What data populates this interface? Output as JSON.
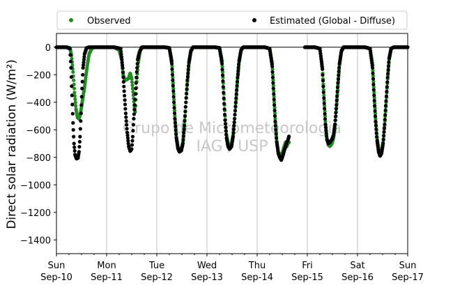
{
  "chart_data": {
    "type": "scatter",
    "ylabel": "Direct solar radiation (W/m²)",
    "ylim": [
      -1500,
      100
    ],
    "yticks": [
      0,
      -200,
      -400,
      -600,
      -800,
      -1000,
      -1200,
      -1400
    ],
    "xlim": [
      0,
      7
    ],
    "x_unit": "days since Sun Sep-10 00:00",
    "xticks": [
      {
        "day": "Sun",
        "date": "Sep-10"
      },
      {
        "day": "Mon",
        "date": "Sep-11"
      },
      {
        "day": "Tue",
        "date": "Sep-12"
      },
      {
        "day": "Wed",
        "date": "Sep-13"
      },
      {
        "day": "Thu",
        "date": "Sep-14"
      },
      {
        "day": "Fri",
        "date": "Sep-15"
      },
      {
        "day": "Sat",
        "date": "Sep-16"
      },
      {
        "day": "Sun",
        "date": "Sep-17"
      }
    ],
    "grid": "vertical",
    "zero_line": true,
    "legend": {
      "placement": "top-outside",
      "entries": [
        {
          "name": "Observed",
          "color": "#228B22"
        },
        {
          "name": "Estimated (Global - Diffuse)",
          "color": "#000000"
        }
      ]
    },
    "watermark": [
      "Grupo de Micrometeorologia",
      "IAG / USP"
    ],
    "series": [
      {
        "name": "Observed",
        "color": "#228B22",
        "points": [
          [
            0.0,
            0
          ],
          [
            0.1,
            0
          ],
          [
            0.2,
            0
          ],
          [
            0.27,
            -5
          ],
          [
            0.3,
            -60
          ],
          [
            0.33,
            -180
          ],
          [
            0.36,
            -330
          ],
          [
            0.39,
            -450
          ],
          [
            0.42,
            -510
          ],
          [
            0.45,
            -520
          ],
          [
            0.48,
            -480
          ],
          [
            0.5,
            -430
          ],
          [
            0.53,
            -360
          ],
          [
            0.56,
            -290
          ],
          [
            0.59,
            -200
          ],
          [
            0.62,
            -120
          ],
          [
            0.65,
            -50
          ],
          [
            0.7,
            -10
          ],
          [
            0.75,
            0
          ],
          [
            0.85,
            0
          ],
          [
            1.0,
            0
          ],
          [
            1.15,
            0
          ],
          [
            1.25,
            -20
          ],
          [
            1.3,
            -90
          ],
          [
            1.33,
            -200
          ],
          [
            1.36,
            -240
          ],
          [
            1.4,
            -235
          ],
          [
            1.44,
            -225
          ],
          [
            1.47,
            -190
          ],
          [
            1.5,
            -230
          ],
          [
            1.52,
            -300
          ],
          [
            1.55,
            -420
          ],
          [
            1.57,
            -470
          ],
          [
            1.6,
            -250
          ],
          [
            1.63,
            -110
          ],
          [
            1.67,
            -20
          ],
          [
            1.72,
            0
          ],
          [
            1.85,
            0
          ],
          [
            2.0,
            0
          ],
          [
            2.15,
            0
          ],
          [
            2.25,
            -5
          ],
          [
            2.3,
            -100
          ],
          [
            2.33,
            -300
          ],
          [
            2.36,
            -500
          ],
          [
            2.39,
            -650
          ],
          [
            2.42,
            -720
          ],
          [
            2.45,
            -750
          ],
          [
            2.49,
            -745
          ],
          [
            2.52,
            -690
          ],
          [
            2.55,
            -560
          ],
          [
            2.58,
            -400
          ],
          [
            2.61,
            -250
          ],
          [
            2.64,
            -120
          ],
          [
            2.68,
            -30
          ],
          [
            2.72,
            0
          ],
          [
            2.85,
            0
          ],
          [
            3.0,
            0
          ],
          [
            3.15,
            0
          ],
          [
            3.25,
            -5
          ],
          [
            3.3,
            -100
          ],
          [
            3.33,
            -300
          ],
          [
            3.36,
            -500
          ],
          [
            3.39,
            -640
          ],
          [
            3.42,
            -700
          ],
          [
            3.45,
            -715
          ],
          [
            3.49,
            -700
          ],
          [
            3.52,
            -640
          ],
          [
            3.55,
            -520
          ],
          [
            3.58,
            -380
          ],
          [
            3.61,
            -230
          ],
          [
            3.64,
            -110
          ],
          [
            3.68,
            -20
          ],
          [
            3.72,
            0
          ],
          [
            3.85,
            0
          ],
          [
            4.0,
            0
          ],
          [
            4.15,
            0
          ],
          [
            4.25,
            -10
          ],
          [
            4.3,
            -120
          ],
          [
            4.33,
            -320
          ],
          [
            4.36,
            -520
          ],
          [
            4.39,
            -680
          ],
          [
            4.42,
            -760
          ],
          [
            4.45,
            -790
          ],
          [
            4.48,
            -780
          ],
          [
            4.51,
            -760
          ],
          [
            4.54,
            -720
          ],
          [
            4.57,
            -690
          ],
          [
            4.59,
            -720
          ],
          [
            4.61,
            -700
          ],
          [
            4.64,
            -690
          ],
          [
            4.75,
            null
          ],
          [
            4.95,
            0
          ],
          [
            5.0,
            0
          ],
          [
            5.15,
            0
          ],
          [
            5.25,
            -10
          ],
          [
            5.3,
            -150
          ],
          [
            5.33,
            -350
          ],
          [
            5.36,
            -540
          ],
          [
            5.39,
            -660
          ],
          [
            5.42,
            -710
          ],
          [
            5.45,
            -720
          ],
          [
            5.49,
            -700
          ],
          [
            5.52,
            -660
          ],
          [
            5.55,
            -590
          ],
          [
            5.58,
            -440
          ],
          [
            5.61,
            -280
          ],
          [
            5.64,
            -130
          ],
          [
            5.68,
            -30
          ],
          [
            5.72,
            0
          ],
          [
            5.85,
            0
          ],
          [
            6.0,
            0
          ],
          [
            6.15,
            0
          ],
          [
            6.25,
            -10
          ],
          [
            6.3,
            -130
          ],
          [
            6.33,
            -330
          ],
          [
            6.36,
            -520
          ],
          [
            6.39,
            -660
          ],
          [
            6.42,
            -740
          ],
          [
            6.45,
            -770
          ],
          [
            6.48,
            -750
          ],
          [
            6.51,
            -690
          ],
          [
            6.54,
            -570
          ],
          [
            6.57,
            -400
          ],
          [
            6.6,
            -230
          ],
          [
            6.63,
            -90
          ],
          [
            6.67,
            -10
          ],
          [
            6.72,
            0
          ],
          [
            6.85,
            0
          ],
          [
            7.0,
            0
          ]
        ]
      },
      {
        "name": "Estimated (Global - Diffuse)",
        "color": "#000000",
        "points": [
          [
            0.0,
            0
          ],
          [
            0.1,
            0
          ],
          [
            0.2,
            0
          ],
          [
            0.27,
            -10
          ],
          [
            0.29,
            -150
          ],
          [
            0.31,
            -350
          ],
          [
            0.33,
            -550
          ],
          [
            0.35,
            -700
          ],
          [
            0.37,
            -780
          ],
          [
            0.4,
            -810
          ],
          [
            0.43,
            -805
          ],
          [
            0.45,
            -760
          ],
          [
            0.47,
            -650
          ],
          [
            0.49,
            -480
          ],
          [
            0.51,
            -300
          ],
          [
            0.53,
            -150
          ],
          [
            0.56,
            -50
          ],
          [
            0.6,
            -5
          ],
          [
            0.65,
            0
          ],
          [
            0.85,
            0
          ],
          [
            1.0,
            0
          ],
          [
            1.15,
            0
          ],
          [
            1.28,
            -10
          ],
          [
            1.32,
            -150
          ],
          [
            1.35,
            -320
          ],
          [
            1.38,
            -480
          ],
          [
            1.41,
            -620
          ],
          [
            1.44,
            -720
          ],
          [
            1.47,
            -755
          ],
          [
            1.5,
            -740
          ],
          [
            1.52,
            -650
          ],
          [
            1.54,
            -520
          ],
          [
            1.56,
            -420
          ],
          [
            1.58,
            -300
          ],
          [
            1.6,
            -180
          ],
          [
            1.62,
            -90
          ],
          [
            1.65,
            -40
          ],
          [
            1.7,
            0
          ],
          [
            1.85,
            0
          ],
          [
            2.0,
            0
          ],
          [
            2.15,
            0
          ],
          [
            2.25,
            -5
          ],
          [
            2.3,
            -120
          ],
          [
            2.33,
            -320
          ],
          [
            2.36,
            -520
          ],
          [
            2.39,
            -660
          ],
          [
            2.42,
            -735
          ],
          [
            2.45,
            -760
          ],
          [
            2.49,
            -750
          ],
          [
            2.52,
            -700
          ],
          [
            2.55,
            -570
          ],
          [
            2.58,
            -400
          ],
          [
            2.61,
            -240
          ],
          [
            2.64,
            -110
          ],
          [
            2.68,
            -25
          ],
          [
            2.72,
            0
          ],
          [
            2.85,
            0
          ],
          [
            3.0,
            0
          ],
          [
            3.15,
            0
          ],
          [
            3.25,
            -5
          ],
          [
            3.3,
            -120
          ],
          [
            3.33,
            -330
          ],
          [
            3.36,
            -530
          ],
          [
            3.39,
            -660
          ],
          [
            3.42,
            -720
          ],
          [
            3.45,
            -740
          ],
          [
            3.49,
            -720
          ],
          [
            3.52,
            -650
          ],
          [
            3.55,
            -520
          ],
          [
            3.58,
            -370
          ],
          [
            3.61,
            -220
          ],
          [
            3.64,
            -100
          ],
          [
            3.68,
            -20
          ],
          [
            3.72,
            0
          ],
          [
            3.85,
            0
          ],
          [
            4.0,
            0
          ],
          [
            4.15,
            0
          ],
          [
            4.25,
            -10
          ],
          [
            4.3,
            -140
          ],
          [
            4.33,
            -340
          ],
          [
            4.36,
            -540
          ],
          [
            4.39,
            -690
          ],
          [
            4.42,
            -770
          ],
          [
            4.45,
            -800
          ],
          [
            4.48,
            -820
          ],
          [
            4.51,
            -790
          ],
          [
            4.54,
            -750
          ],
          [
            4.57,
            -720
          ],
          [
            4.59,
            -690
          ],
          [
            4.61,
            -680
          ],
          [
            4.64,
            -640
          ],
          [
            4.75,
            null
          ],
          [
            4.95,
            0
          ],
          [
            5.0,
            0
          ],
          [
            5.15,
            0
          ],
          [
            5.25,
            -10
          ],
          [
            5.3,
            -160
          ],
          [
            5.33,
            -370
          ],
          [
            5.36,
            -560
          ],
          [
            5.39,
            -670
          ],
          [
            5.42,
            -700
          ],
          [
            5.45,
            -690
          ],
          [
            5.49,
            -670
          ],
          [
            5.52,
            -640
          ],
          [
            5.55,
            -560
          ],
          [
            5.58,
            -420
          ],
          [
            5.61,
            -260
          ],
          [
            5.64,
            -120
          ],
          [
            5.68,
            -25
          ],
          [
            5.72,
            0
          ],
          [
            5.85,
            0
          ],
          [
            6.0,
            0
          ],
          [
            6.15,
            0
          ],
          [
            6.25,
            -10
          ],
          [
            6.3,
            -150
          ],
          [
            6.33,
            -350
          ],
          [
            6.36,
            -540
          ],
          [
            6.39,
            -680
          ],
          [
            6.42,
            -760
          ],
          [
            6.45,
            -790
          ],
          [
            6.48,
            -770
          ],
          [
            6.51,
            -700
          ],
          [
            6.54,
            -560
          ],
          [
            6.57,
            -390
          ],
          [
            6.6,
            -220
          ],
          [
            6.63,
            -80
          ],
          [
            6.67,
            -10
          ],
          [
            6.72,
            0
          ],
          [
            6.85,
            0
          ],
          [
            7.0,
            0
          ]
        ]
      }
    ]
  }
}
